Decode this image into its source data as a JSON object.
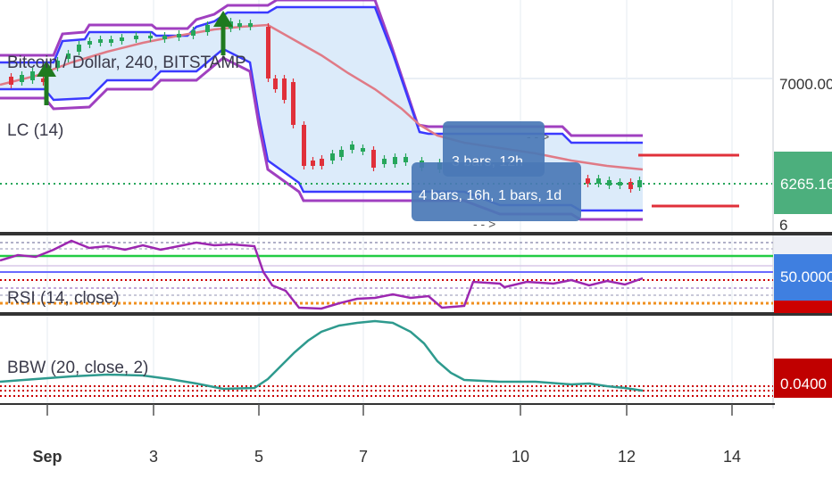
{
  "colors": {
    "channel_outer": "#a040c0",
    "channel_inner": "#3a3aff",
    "channel_fill": "#dcebfa",
    "ma_line": "#e07a86",
    "candle_up": "#26a65b",
    "candle_down": "#e0303a",
    "rsi_line": "#9c27b0",
    "bbw_line": "#2e9a8e",
    "price_badge": "#4caf7d",
    "rsi_badge": "#3f7fe0",
    "bbw_badge": "#c00000",
    "tooltip": "#4a78b6",
    "arrow": "#1f7a1f"
  },
  "price_pane": {
    "symbol_label": "Bitcoin / Dollar, 240, BITSTAMP",
    "indicator_label": "LC (14)",
    "price_axis_tick": "7000.00",
    "current_price": "6265.16",
    "partial_tick": "6"
  },
  "tooltips": {
    "upper": "3 bars, 12h",
    "lower": "4 bars, 16h, 1 bars, 1d"
  },
  "rsi_pane": {
    "label": "RSI (14, close)",
    "current_value": "50.0000"
  },
  "bbw_pane": {
    "label": "BBW (20, close, 2)",
    "current_value": "0.0400"
  },
  "chart_data": {
    "type": "line",
    "x_axis_ticks": [
      "Sep",
      "3",
      "5",
      "7",
      "10",
      "12",
      "14"
    ],
    "price_axis_ticks": [
      "7000.00"
    ],
    "last_price": 6265.16,
    "rsi_last": 50.0,
    "bbw_last": 0.04
  }
}
